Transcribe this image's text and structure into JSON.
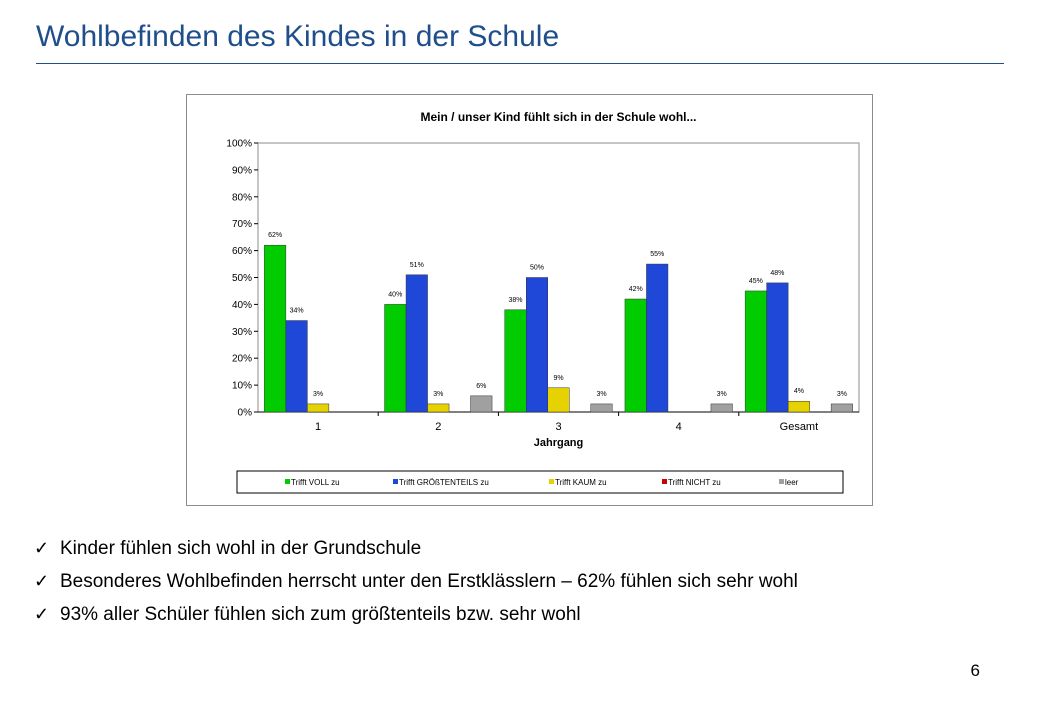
{
  "slide": {
    "title": "Wohlbefinden des Kindes in der Schule",
    "page_number": "6",
    "bullets": [
      "Kinder fühlen sich wohl in der Grundschule",
      "Besonderes Wohlbefinden herrscht unter den Erstklässlern – 62% fühlen sich sehr wohl",
      "93% aller Schüler fühlen sich zum größtenteils bzw. sehr wohl"
    ],
    "check_glyph": "✓"
  },
  "chart_data": {
    "type": "bar",
    "title": "Mein / unser Kind fühlt sich in der Schule wohl...",
    "xlabel": "Jahrgang",
    "ylabel": "",
    "ylim": [
      0,
      100
    ],
    "yticks": [
      "0%",
      "10%",
      "20%",
      "30%",
      "40%",
      "50%",
      "60%",
      "70%",
      "80%",
      "90%",
      "100%"
    ],
    "categories": [
      "1",
      "2",
      "3",
      "4",
      "Gesamt"
    ],
    "legend_position": "bottom",
    "grid": false,
    "series": [
      {
        "name": "Trifft VOLL zu",
        "color": "#00cc00",
        "values": [
          62,
          40,
          38,
          42,
          45
        ],
        "labels": [
          "62%",
          "40%",
          "38%",
          "42%",
          "45%"
        ]
      },
      {
        "name": "Trifft GRÖßTENTEILS zu",
        "color": "#1f48d8",
        "values": [
          34,
          51,
          50,
          55,
          48
        ],
        "labels": [
          "34%",
          "51%",
          "50%",
          "55%",
          "48%"
        ]
      },
      {
        "name": "Trifft KAUM zu",
        "color": "#e6d200",
        "values": [
          3,
          3,
          9,
          0,
          4
        ],
        "labels": [
          "3%",
          "3%",
          "9%",
          "",
          "4%"
        ]
      },
      {
        "name": "Trifft NICHT zu",
        "color": "#cc0000",
        "values": [
          0,
          0,
          0,
          0,
          0
        ],
        "labels": [
          "",
          "",
          "",
          "",
          ""
        ]
      },
      {
        "name": "leer",
        "color": "#a0a0a0",
        "values": [
          0,
          6,
          3,
          3,
          3
        ],
        "labels": [
          "",
          "6%",
          "3%",
          "3%",
          "3%"
        ]
      }
    ]
  }
}
